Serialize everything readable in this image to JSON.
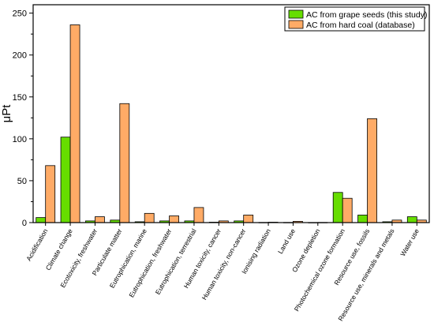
{
  "chart_data": {
    "type": "bar",
    "ylabel": "μPt",
    "ylim": [
      0,
      260
    ],
    "yticks": [
      0,
      50,
      100,
      150,
      200,
      250
    ],
    "grid": false,
    "legend_position": "top-right",
    "categories": [
      "Acidification",
      "Climate change",
      "Ecotoxicity, freshwater",
      "Particulate matter",
      "Eutrophication, marine",
      "Eutrophication, freshwater",
      "Eutrophication, terrestrial",
      "Human toxicity, cancer",
      "Human toxicity, non-cancer",
      "Ionising radiation",
      "Land use",
      "Ozone depletion",
      "Photochemical ozone formation",
      "Resource use, fossils",
      "Resource use, minerals and metals",
      "Water use"
    ],
    "series": [
      {
        "name": "AC from grape seeds (this study)",
        "color": "#66dd00",
        "values": [
          6,
          102,
          2,
          3,
          1,
          2,
          2,
          0.5,
          2,
          0.2,
          0.2,
          0.1,
          36,
          9,
          1,
          7
        ]
      },
      {
        "name": "AC from hard coal (database)",
        "color": "#ffab66",
        "values": [
          68,
          236,
          7,
          142,
          11,
          8,
          18,
          2,
          9,
          0.5,
          1.5,
          0.2,
          29,
          124,
          3,
          3
        ]
      }
    ]
  }
}
